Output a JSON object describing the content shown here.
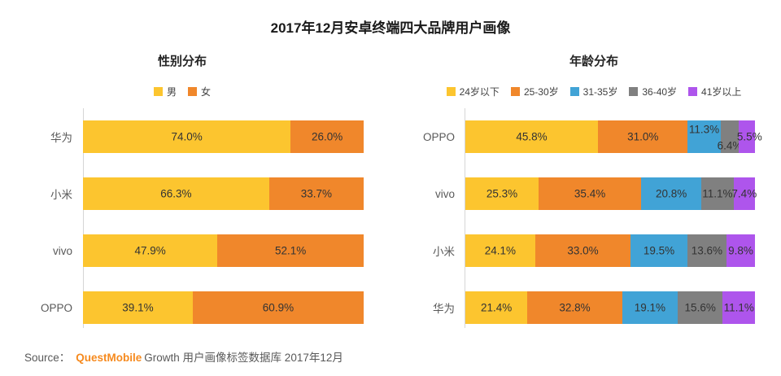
{
  "title": "2017年12月安卓终端四大品牌用户画像",
  "source": {
    "prefix": "Source：",
    "brand": "QuestMobile",
    "suffix": "Growth 用户画像标签数据库 2017年12月"
  },
  "colors": {
    "yellow": "#FCC52F",
    "orange": "#F0872B",
    "blue": "#41A3D6",
    "gray": "#808080",
    "purple": "#AE55EC",
    "brand_orange": "#F68A1E",
    "axis": "#D6D6D6"
  },
  "chart_data": [
    {
      "type": "bar",
      "stacked": true,
      "orientation": "horizontal",
      "title": "性别分布",
      "unit": "%",
      "xlim": [
        0,
        100
      ],
      "grid": false,
      "legend_position": "top",
      "categories": [
        "华为",
        "小米",
        "vivo",
        "OPPO"
      ],
      "series": [
        {
          "name": "男",
          "color_key": "yellow",
          "values": [
            74.0,
            66.3,
            47.9,
            39.1
          ]
        },
        {
          "name": "女",
          "color_key": "orange",
          "values": [
            26.0,
            33.7,
            52.1,
            60.9
          ]
        }
      ],
      "label_nudges": {}
    },
    {
      "type": "bar",
      "stacked": true,
      "orientation": "horizontal",
      "title": "年龄分布",
      "unit": "%",
      "xlim": [
        0,
        100
      ],
      "grid": false,
      "legend_position": "top",
      "categories": [
        "OPPO",
        "vivo",
        "小米",
        "华为"
      ],
      "series": [
        {
          "name": "24岁以下",
          "color_key": "yellow",
          "values": [
            45.8,
            25.3,
            24.1,
            21.4
          ]
        },
        {
          "name": "25-30岁",
          "color_key": "orange",
          "values": [
            31.0,
            35.4,
            33.0,
            32.8
          ]
        },
        {
          "name": "31-35岁",
          "color_key": "blue",
          "values": [
            11.3,
            20.8,
            19.5,
            19.1
          ]
        },
        {
          "name": "36-40岁",
          "color_key": "gray",
          "values": [
            6.4,
            11.1,
            13.6,
            15.6
          ]
        },
        {
          "name": "41岁以上",
          "color_key": "purple",
          "values": [
            5.5,
            7.4,
            9.8,
            11.1
          ]
        }
      ],
      "label_nudges": {
        "0": {
          "2": "up",
          "3": "down",
          "4": "right"
        }
      }
    }
  ]
}
